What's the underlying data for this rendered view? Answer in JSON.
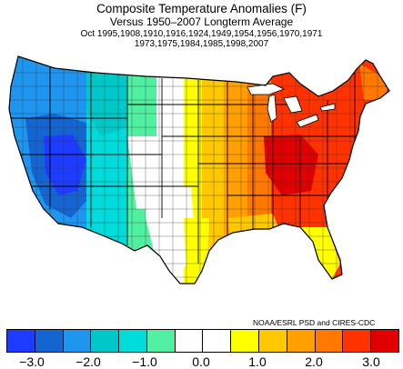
{
  "title": "Composite Temperature Anomalies (F)",
  "subtitle": "Versus 1950–2007 Longterm Average",
  "years_line1": "Oct   1995,1908,1910,1916,1924,1949,1954,1956,1970,1971",
  "years_line2": "1973,1975,1984,1985,1998,2007",
  "credit": "NOAA/ESRL PSD and CIRES-CDC",
  "colors": {
    "c1": "#1e3cff",
    "c2": "#1464d2",
    "c3": "#1e96f0",
    "c4": "#00c8c8",
    "c5": "#00dcdc",
    "c6": "#50f0a0",
    "c7": "#ffffff",
    "c8": "#ffffff",
    "c9": "#ffff00",
    "c10": "#ffc800",
    "c11": "#ffa000",
    "c12": "#ff7800",
    "c13": "#ff3200",
    "c14": "#e10000"
  },
  "colorbar_ticks": [
    "−3.0",
    "−2.0",
    "−1.0",
    "0.0",
    "1.0",
    "2.0",
    "3.0"
  ]
}
